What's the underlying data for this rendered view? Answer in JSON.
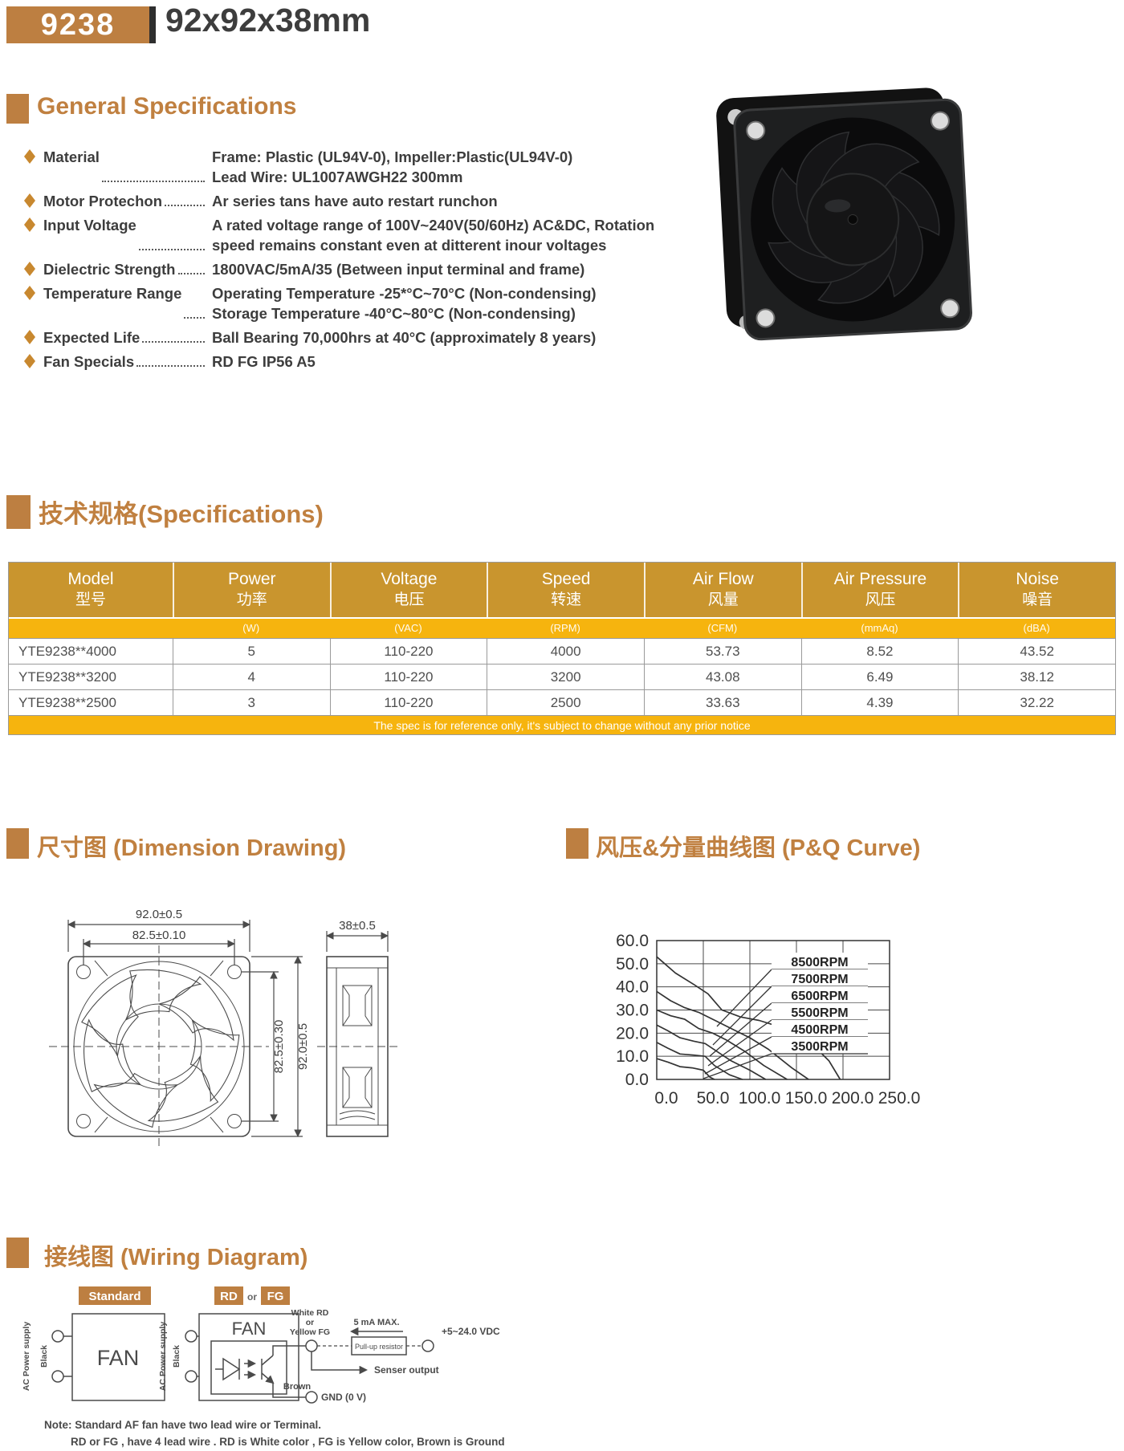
{
  "header": {
    "model_code": "9238",
    "size_title": "92x92x38mm"
  },
  "general_specs": {
    "title": "General Specifications",
    "items": [
      {
        "label": "Material",
        "lines": [
          "Frame: Plastic (UL94V-0), Impeller:Plastic(UL94V-0)",
          "Lead Wire: UL1007AWGH22 300mm"
        ]
      },
      {
        "label": "Motor Protechon",
        "lines": [
          "Ar series tans have auto restart runchon"
        ]
      },
      {
        "label": "Input Voltage",
        "lines": [
          "A rated voltage range of 100V~240V(50/60Hz) AC&DC, Rotation",
          "speed remains constant even at ditterent inour voltages"
        ]
      },
      {
        "label": "Dielectric Strength",
        "lines": [
          "1800VAC/5mA/35 (Between input terminal and frame)"
        ]
      },
      {
        "label": "Temperature Range",
        "lines": [
          "Operating Temperature -25*°C~70°C (Non-condensing)",
          "Storage Temperature -40°C~80°C (Non-condensing)"
        ]
      },
      {
        "label": "Expected Life",
        "lines": [
          "Ball Bearing 70,000hrs at 40°C (approximately 8 years)"
        ]
      },
      {
        "label": "Fan Specials",
        "lines": [
          "RD FG IP56 A5"
        ]
      }
    ]
  },
  "spec_table": {
    "section_title": "技术规格(Specifications)",
    "columns": [
      {
        "en": "Model",
        "zh": "型号",
        "unit": ""
      },
      {
        "en": "Power",
        "zh": "功率",
        "unit": "(W)"
      },
      {
        "en": "Voltage",
        "zh": "电压",
        "unit": "(VAC)"
      },
      {
        "en": "Speed",
        "zh": "转速",
        "unit": "(RPM)"
      },
      {
        "en": "Air Flow",
        "zh": "风量",
        "unit": "(CFM)"
      },
      {
        "en": "Air Pressure",
        "zh": "风压",
        "unit": "(mmAq)"
      },
      {
        "en": "Noise",
        "zh": "噪音",
        "unit": "(dBA)"
      }
    ],
    "rows": [
      [
        "YTE9238**4000",
        "5",
        "110-220",
        "4000",
        "53.73",
        "8.52",
        "43.52"
      ],
      [
        "YTE9238**3200",
        "4",
        "110-220",
        "3200",
        "43.08",
        "6.49",
        "38.12"
      ],
      [
        "YTE9238**2500",
        "3",
        "110-220",
        "2500",
        "33.63",
        "4.39",
        "32.22"
      ]
    ],
    "footnote": "The spec is for reference only, it's subject to change without any prior notice"
  },
  "dimension": {
    "section_title": "尺寸图  (Dimension Drawing)",
    "labels": {
      "width_outer": "92.0±0.5",
      "hole_pitch_h": "82.5±0.10",
      "hole_pitch_v": "82.5±0.30",
      "height_outer": "92.0±0.5",
      "depth": "38±0.5"
    }
  },
  "pq_section_title": "风压&分量曲线图  (P&Q Curve)",
  "chart_data": {
    "type": "line",
    "title": "P&Q Curve",
    "xlabel": "",
    "ylabel": "",
    "xlim": [
      0,
      250
    ],
    "ylim": [
      0,
      60
    ],
    "x_ticks": [
      "0.0",
      "50.0",
      "100.0",
      "150.0",
      "200.0",
      "250.0"
    ],
    "y_ticks": [
      "0.0",
      "10.0",
      "20.0",
      "30.0",
      "40.0",
      "50.0",
      "60.0"
    ],
    "grid": true,
    "legend_position": "inside-right",
    "series": [
      {
        "name": "8500RPM",
        "points": [
          [
            0,
            53
          ],
          [
            20,
            46
          ],
          [
            40,
            41
          ],
          [
            55,
            37
          ],
          [
            70,
            30
          ],
          [
            90,
            27
          ],
          [
            110,
            25.5
          ],
          [
            130,
            23
          ],
          [
            150,
            20
          ],
          [
            170,
            14
          ],
          [
            185,
            8
          ],
          [
            197,
            0
          ]
        ]
      },
      {
        "name": "7500RPM",
        "points": [
          [
            0,
            38
          ],
          [
            15,
            34
          ],
          [
            30,
            31
          ],
          [
            45,
            29
          ],
          [
            60,
            26
          ],
          [
            80,
            22
          ],
          [
            100,
            18
          ],
          [
            120,
            13
          ],
          [
            145,
            5
          ],
          [
            163,
            0
          ]
        ]
      },
      {
        "name": "6500RPM",
        "points": [
          [
            0,
            30
          ],
          [
            15,
            27.5
          ],
          [
            30,
            26
          ],
          [
            45,
            22
          ],
          [
            60,
            20
          ],
          [
            75,
            17
          ],
          [
            95,
            12
          ],
          [
            115,
            6
          ],
          [
            140,
            0
          ]
        ]
      },
      {
        "name": "5500RPM",
        "points": [
          [
            0,
            23.5
          ],
          [
            12,
            21
          ],
          [
            25,
            18
          ],
          [
            40,
            16.5
          ],
          [
            52,
            15.5
          ],
          [
            65,
            12
          ],
          [
            80,
            8
          ],
          [
            100,
            4
          ],
          [
            117,
            0
          ]
        ]
      },
      {
        "name": "4500RPM",
        "points": [
          [
            0,
            16
          ],
          [
            12,
            13.5
          ],
          [
            25,
            11
          ],
          [
            40,
            10.5
          ],
          [
            52,
            10
          ],
          [
            62,
            6
          ],
          [
            78,
            2
          ],
          [
            92,
            0
          ]
        ]
      },
      {
        "name": "3500RPM",
        "points": [
          [
            0,
            9
          ],
          [
            12,
            7.5
          ],
          [
            25,
            5.5
          ],
          [
            38,
            5
          ],
          [
            50,
            4
          ],
          [
            57,
            1
          ],
          [
            62,
            0
          ]
        ]
      }
    ]
  },
  "wiring": {
    "section_title": "接线图  (Wiring Diagram)",
    "standard_label": "Standard",
    "rd_label": "RD",
    "or_label": "or",
    "fg_label": "FG",
    "fan_label": "FAN",
    "ac_supply": "AC Power supply",
    "black": "Black",
    "white_rd": "White  RD",
    "or_mid": "or",
    "yellow_fg": "Yellow FG",
    "ma_max": "5 mA MAX.",
    "vdc": "+5~24.0 VDC",
    "pullup": "Pull-up resistor",
    "senser": "Senser output",
    "brown": "Brown",
    "gnd": "GND (0 V)",
    "note1": "Note: Standard AF fan have two lead wire or Terminal.",
    "note2": "RD or FG , have 4 lead wire . RD is White color , FG is Yellow color, Brown is Ground"
  }
}
